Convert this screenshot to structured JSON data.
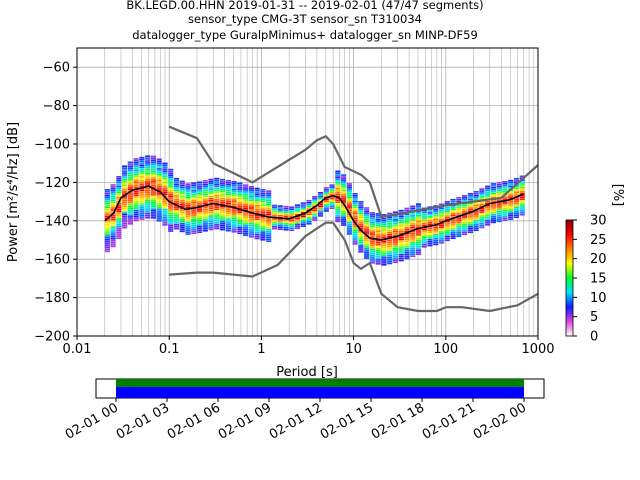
{
  "header": {
    "line1": "BK.LEGD.00.HHN   2019-01-31 -- 2019-02-01  (47/47 segments)",
    "line2": "sensor_type CMG-3T sensor_sn T310034",
    "line3": "datalogger_type GuralpMinimus+ datalogger_sn MINP-DF59"
  },
  "chart_data": [
    {
      "type": "heatmap",
      "title": "BK.LEGD.00.HHN   2019-01-31 -- 2019-02-01  (47/47 segments)",
      "xlabel": "Period [s]",
      "ylabel": "Power [m²/s⁴/Hz] [dB]",
      "xscale": "log",
      "xlim": [
        0.01,
        1000
      ],
      "ylim": [
        -200,
        -50
      ],
      "grid": true,
      "x_ticks": [
        0.01,
        0.1,
        1,
        10,
        100,
        1000
      ],
      "x_tick_labels": [
        "0.01",
        "0.1",
        "1",
        "10",
        "100",
        "1000"
      ],
      "y_ticks": [
        -200,
        -180,
        -160,
        -140,
        -120,
        -100,
        -80,
        -60
      ],
      "y_tick_labels": [
        "−200",
        "−180",
        "−160",
        "−140",
        "−120",
        "−100",
        "−80",
        "−60"
      ],
      "colorbar": {
        "label": "[%]",
        "range": [
          0,
          30
        ],
        "ticks": [
          0,
          5,
          10,
          15,
          20,
          25,
          30
        ],
        "tick_labels": [
          "0",
          "5",
          "10",
          "15",
          "20",
          "25",
          "30"
        ],
        "colors": [
          "#ffffff",
          "#e040e0",
          "#1020ff",
          "#00e0ff",
          "#00ff30",
          "#ffff00",
          "#ff8000",
          "#ff0000",
          "#800000"
        ]
      },
      "series": [
        {
          "name": "",
          "color": "#000000",
          "x": [
            0.02,
            0.025,
            0.03,
            0.04,
            0.06,
            0.08,
            0.1,
            0.15,
            0.2,
            0.3,
            0.5,
            0.8,
            1.2,
            2,
            3,
            4,
            5,
            6,
            7,
            8,
            10,
            12,
            15,
            20,
            30,
            50,
            80,
            100,
            200,
            300,
            500,
            700
          ],
          "y": [
            -140,
            -136,
            -128,
            -124,
            -122,
            -125,
            -130,
            -134,
            -133,
            -131,
            -133,
            -136,
            -138,
            -139,
            -136,
            -132,
            -128,
            -127,
            -128,
            -132,
            -140,
            -145,
            -149,
            -150,
            -148,
            -144,
            -142,
            -140,
            -135,
            -131,
            -129,
            -126
          ]
        },
        {
          "name": "",
          "color": "#666666",
          "x": [
            0.1,
            0.2,
            0.3,
            0.8,
            3,
            4,
            5,
            6,
            8,
            12,
            15,
            20,
            100,
            200,
            400,
            1000
          ],
          "y": [
            -91,
            -97,
            -110,
            -120,
            -103,
            -98,
            -96,
            -100,
            -112,
            -116,
            -120,
            -138,
            -132,
            -130,
            -128,
            -111
          ]
        },
        {
          "name": "",
          "color": "#666666",
          "x": [
            0.1,
            0.2,
            0.3,
            0.8,
            1.5,
            3,
            4,
            5,
            6,
            8,
            10,
            12,
            15,
            20,
            30,
            50,
            80,
            100,
            150,
            300,
            600,
            1000
          ],
          "y": [
            -168,
            -167,
            -167,
            -169,
            -163,
            -148,
            -144,
            -141,
            -141,
            -150,
            -162,
            -165,
            -162,
            -178,
            -185,
            -187,
            -187,
            -185,
            -185,
            -187,
            -184,
            -178
          ]
        }
      ]
    },
    {
      "type": "timeline",
      "tick_labels": [
        "02-01 00",
        "02-01 03",
        "02-01 06",
        "02-01 09",
        "02-01 12",
        "02-01 15",
        "02-01 18",
        "02-01 21",
        "02-02 00"
      ],
      "tick_hours": [
        0,
        3,
        6,
        9,
        12,
        15,
        18,
        21,
        24
      ],
      "coverage": {
        "start_hour": 0,
        "end_hour": 24
      },
      "colors": {
        "green": "#008000",
        "blue": "#0000ff"
      }
    }
  ]
}
